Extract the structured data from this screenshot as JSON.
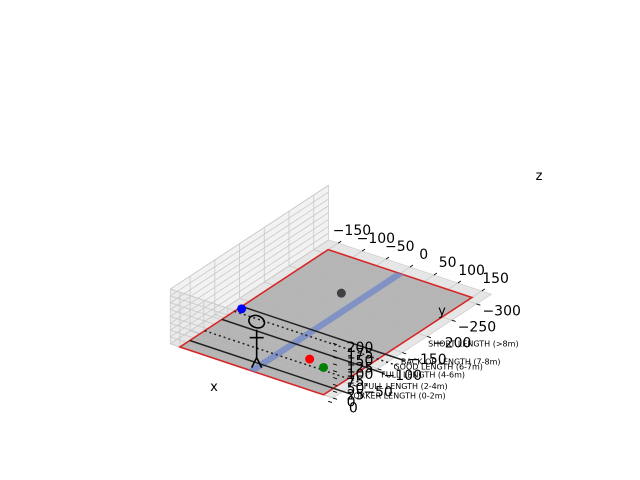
{
  "chart_data": {
    "type": "scatter",
    "projection": "3d",
    "title": "",
    "xlabel": "x",
    "ylabel": "y",
    "zlabel": "z",
    "xlim": [
      -170,
      170
    ],
    "ylim": [
      -330,
      -10
    ],
    "zlim": [
      0,
      200
    ],
    "grid": true,
    "x_ticks": [
      {
        "v": -150,
        "label": "−150"
      },
      {
        "v": -100,
        "label": "−100"
      },
      {
        "v": -50,
        "label": "−50"
      },
      {
        "v": 0,
        "label": "0"
      },
      {
        "v": 50,
        "label": "50"
      },
      {
        "v": 100,
        "label": "100"
      },
      {
        "v": 150,
        "label": "150"
      }
    ],
    "y_ticks": [
      {
        "v": -300,
        "label": "−300"
      },
      {
        "v": -250,
        "label": "−250"
      },
      {
        "v": -200,
        "label": "−200"
      },
      {
        "v": -150,
        "label": "−150"
      },
      {
        "v": -100,
        "label": "−100"
      },
      {
        "v": -50,
        "label": "−50"
      },
      {
        "v": 0,
        "label": "0"
      }
    ],
    "z_ticks": [
      {
        "v": 0,
        "label": "0"
      },
      {
        "v": 25,
        "label": "25"
      },
      {
        "v": 50,
        "label": "50"
      },
      {
        "v": 75,
        "label": "75"
      },
      {
        "v": 100,
        "label": "100"
      },
      {
        "v": 125,
        "label": "125"
      },
      {
        "v": 150,
        "label": "150"
      },
      {
        "v": 175,
        "label": "175"
      },
      {
        "v": 200,
        "label": "200"
      }
    ],
    "pitch": {
      "x": [
        -150,
        150
      ],
      "y": [
        -310,
        -10
      ],
      "fill_color": "#b0b0b0",
      "edge_color": "#d62728",
      "strip": {
        "x": [
          -8,
          8
        ],
        "color": "#6f86c9"
      }
    },
    "length_zones": [
      {
        "label": "YORKER LENGTH (0-2m)",
        "y": -30,
        "style": "solid"
      },
      {
        "label": "FULL LENGTH (2-4m)",
        "y": -60,
        "style": "dotted"
      },
      {
        "label": "FULL LENGTH (4-6m)",
        "y": -95,
        "style": "solid"
      },
      {
        "label": "GOOD LENGTH (6-7m)",
        "y": -120,
        "style": "dotted"
      },
      {
        "label": "BACK OF LENGTH (7-8m)",
        "y": -135,
        "style": "solid"
      },
      {
        "label": "SHORT LENGTH (>8m)",
        "y": -190,
        "style": "none"
      }
    ],
    "series": [
      {
        "x": [
          90
        ],
        "y": [
          -40
        ],
        "z": [
          60
        ],
        "color": "#ff0000"
      },
      {
        "x": [
          150
        ],
        "y": [
          -10
        ],
        "z": [
          100
        ],
        "color": "#008000"
      },
      {
        "x": [
          -145
        ],
        "y": [
          -130
        ],
        "z": [
          0
        ],
        "color": "#0000ff"
      },
      {
        "x": [
          -40
        ],
        "y": [
          -230
        ],
        "z": [
          0
        ],
        "color": "#404040"
      }
    ],
    "stick_figure": {
      "x": 0,
      "y": -20,
      "z_foot": 0
    }
  }
}
